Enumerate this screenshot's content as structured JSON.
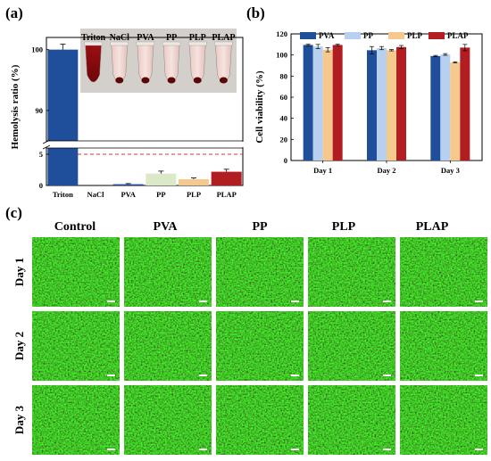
{
  "panel_labels": {
    "a": "(a)",
    "b": "(b)",
    "c": "(c)"
  },
  "colors": {
    "pva": "#1f4e9a",
    "pp": "#b8d0f0",
    "plp": "#f5c98e",
    "plap": "#b21d22",
    "triton": "#1f4e9a",
    "nacl": "#1f4e9a",
    "hemo_pp": "#dbe9c8",
    "hemo_plp": "#f5c98e",
    "hemo_plap": "#b21d22",
    "threshold": "#d9363e",
    "micrograph": "#23a824"
  },
  "chart_data": [
    {
      "type": "bar",
      "ylabel": "Hemolysis ratio (%)",
      "categories": [
        "Triton",
        "NaCl",
        "PVA",
        "PP",
        "PLP",
        "PLAP"
      ],
      "values": [
        100,
        0,
        0.2,
        1.9,
        1.0,
        2.2
      ],
      "errors": [
        0.9,
        0,
        0.1,
        0.4,
        0.2,
        0.4
      ],
      "y_ticks_lower": [
        "0",
        "5"
      ],
      "y_ticks_upper": [
        "90",
        "100"
      ],
      "axis_break": true,
      "ylim_lower": [
        0,
        6
      ],
      "ylim_upper": [
        85,
        102
      ],
      "threshold": 5,
      "inset_labels": [
        "Triton",
        "NaCl",
        "PVA",
        "PP",
        "PLP",
        "PLAP"
      ]
    },
    {
      "type": "bar",
      "ylabel": "Cell viability (%)",
      "categories": [
        "Day 1",
        "Day 2",
        "Day 3"
      ],
      "ylim": [
        0,
        120
      ],
      "y_ticks": [
        "0",
        "20",
        "40",
        "60",
        "80",
        "100",
        "120"
      ],
      "legend_position": "top",
      "series": [
        {
          "name": "PVA",
          "values": [
            109.5,
            104.5,
            99
          ],
          "errors": [
            0.8,
            3.5,
            0.6
          ]
        },
        {
          "name": "PP",
          "values": [
            108,
            106.5,
            100.5
          ],
          "errors": [
            2.0,
            1.5,
            0.8
          ]
        },
        {
          "name": "PLP",
          "values": [
            105,
            104.5,
            93
          ],
          "errors": [
            2.0,
            0.6,
            0.6
          ]
        },
        {
          "name": "PLAP",
          "values": [
            109.5,
            107.5,
            107
          ],
          "errors": [
            0.8,
            1.5,
            3.0
          ]
        }
      ]
    }
  ],
  "micrographs": {
    "columns": [
      "Control",
      "PVA",
      "PP",
      "PLP",
      "PLAP"
    ],
    "rows": [
      "Day 1",
      "Day 2",
      "Day 3"
    ]
  }
}
